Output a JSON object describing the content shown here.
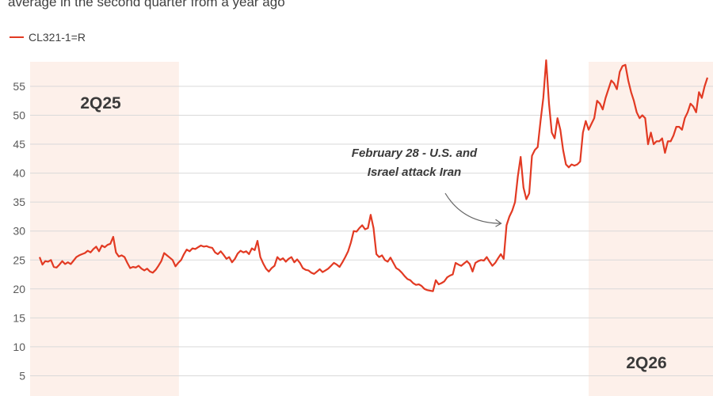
{
  "header": {
    "subtitle": "average in the second quarter from a year ago"
  },
  "colors": {
    "line": "#e23a23",
    "band": "#fdf0ea",
    "grid": "#d9d9d9",
    "arrow": "#666666"
  },
  "chart_data": {
    "type": "line",
    "title": "",
    "xlabel": "",
    "ylabel": "",
    "ylim": [
      0,
      60
    ],
    "yticks": [
      5,
      10,
      15,
      20,
      25,
      30,
      35,
      40,
      45,
      50,
      55
    ],
    "grid": true,
    "legend_position": "top-left",
    "series": [
      {
        "name": "CL321-1=R",
        "values": [
          25.5,
          24.2,
          24.8,
          24.7,
          25.0,
          23.8,
          23.7,
          24.2,
          24.8,
          24.3,
          24.6,
          24.3,
          24.9,
          25.5,
          25.8,
          26.0,
          26.2,
          26.6,
          26.3,
          26.9,
          27.3,
          26.5,
          27.5,
          27.2,
          27.6,
          27.8,
          29.0,
          26.3,
          25.6,
          25.8,
          25.5,
          24.5,
          23.6,
          23.8,
          23.7,
          24.0,
          23.5,
          23.2,
          23.5,
          23.0,
          22.8,
          23.3,
          24.0,
          24.8,
          26.2,
          25.8,
          25.4,
          25.0,
          23.9,
          24.5,
          25.0,
          26.0,
          26.8,
          26.5,
          27.0,
          26.9,
          27.2,
          27.5,
          27.3,
          27.4,
          27.2,
          27.1,
          26.3,
          26.0,
          26.5,
          25.9,
          25.2,
          25.5,
          24.6,
          25.2,
          26.1,
          26.6,
          26.3,
          26.5,
          26.0,
          27.0,
          26.7,
          28.3,
          25.5,
          24.4,
          23.5,
          23.0,
          23.6,
          24.0,
          25.5,
          25.0,
          25.3,
          24.7,
          25.2,
          25.5,
          24.6,
          25.1,
          24.5,
          23.6,
          23.3,
          23.2,
          22.8,
          22.6,
          23.0,
          23.4,
          22.9,
          23.2,
          23.5,
          24.0,
          24.5,
          24.2,
          23.8,
          24.6,
          25.5,
          26.5,
          28.0,
          30.0,
          29.9,
          30.5,
          31.0,
          30.3,
          30.5,
          32.8,
          30.5,
          26.0,
          25.5,
          25.8,
          25.0,
          24.7,
          25.4,
          24.5,
          23.6,
          23.3,
          22.8,
          22.2,
          21.7,
          21.5,
          21.0,
          20.7,
          20.8,
          20.5,
          20.0,
          19.8,
          19.7,
          19.6,
          21.5,
          20.8,
          21.0,
          21.3,
          22.0,
          22.3,
          22.5,
          24.5,
          24.2,
          24.0,
          24.4,
          24.8,
          24.3,
          23.0,
          24.5,
          24.8,
          25.0,
          24.9,
          25.5,
          24.7,
          24.0,
          24.5,
          25.3,
          26.0,
          25.2,
          31.0,
          32.5,
          33.5,
          35.0,
          39.5,
          42.8,
          37.5,
          35.5,
          36.5,
          43.0,
          44.0,
          44.5,
          49.0,
          53.0,
          59.5,
          52.0,
          47.0,
          46.0,
          49.5,
          47.5,
          44.0,
          41.5,
          41.0,
          41.5,
          41.3,
          41.5,
          42.0,
          47.0,
          49.0,
          47.5,
          48.5,
          49.5,
          52.5,
          52.0,
          51.0,
          53.0,
          54.5,
          56.0,
          55.5,
          54.5,
          57.5,
          58.5,
          58.7,
          56.0,
          54.0,
          52.5,
          50.5,
          49.5,
          50.0,
          49.5,
          45.0,
          47.0,
          45.0,
          45.5,
          45.5,
          46.0,
          43.5,
          45.5,
          45.5,
          46.5,
          48.0,
          48.0,
          47.5,
          49.5,
          50.5,
          52.0,
          51.5,
          50.5,
          54.0,
          53.0,
          55.0,
          56.5
        ]
      }
    ],
    "bands": [
      {
        "label": "2Q25",
        "start_index": 0,
        "end_index": 47,
        "label_position": "top"
      },
      {
        "label": "2Q26",
        "start_index": 194,
        "end_index": 245,
        "label_position": "bottom"
      }
    ],
    "annotation": {
      "lines": [
        "February 28 - U.S. and",
        "Israel attack Iran"
      ],
      "point_index": 167
    }
  }
}
